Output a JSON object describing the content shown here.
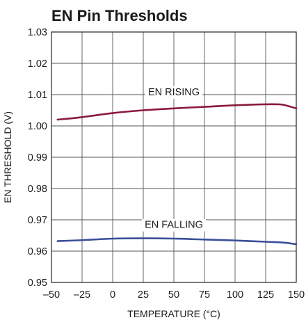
{
  "chart_data": {
    "type": "line",
    "title": "EN Pin Thresholds",
    "xlabel": "TEMPERATURE (°C)",
    "ylabel": "EN THRESHOLD (V)",
    "xlim": [
      -50,
      150
    ],
    "ylim": [
      0.95,
      1.03
    ],
    "x_ticks": [
      -50,
      -25,
      0,
      25,
      50,
      75,
      100,
      125,
      150
    ],
    "x_tick_labels": [
      "–50",
      "–25",
      "0",
      "25",
      "50",
      "75",
      "100",
      "125",
      "150"
    ],
    "y_ticks": [
      0.95,
      0.96,
      0.97,
      0.98,
      0.99,
      1.0,
      1.01,
      1.02,
      1.03
    ],
    "y_tick_labels": [
      "0.95",
      "0.96",
      "0.97",
      "0.98",
      "0.99",
      "1.00",
      "1.01",
      "1.02",
      "1.03"
    ],
    "grid": true,
    "legend": "none",
    "series": [
      {
        "name": "EN RISING",
        "color": "#8b1a3a",
        "x": [
          -45,
          -25,
          0,
          25,
          50,
          75,
          100,
          125,
          135,
          140,
          150
        ],
        "y": [
          1.002,
          1.0028,
          1.0041,
          1.005,
          1.0056,
          1.0061,
          1.0066,
          1.0069,
          1.0069,
          1.0067,
          1.0056
        ]
      },
      {
        "name": "EN FALLING",
        "color": "#3a4f9a",
        "x": [
          -45,
          -25,
          0,
          25,
          50,
          75,
          100,
          125,
          140,
          150
        ],
        "y": [
          0.9632,
          0.9635,
          0.964,
          0.9641,
          0.964,
          0.9637,
          0.9634,
          0.963,
          0.9627,
          0.9622
        ]
      }
    ]
  }
}
